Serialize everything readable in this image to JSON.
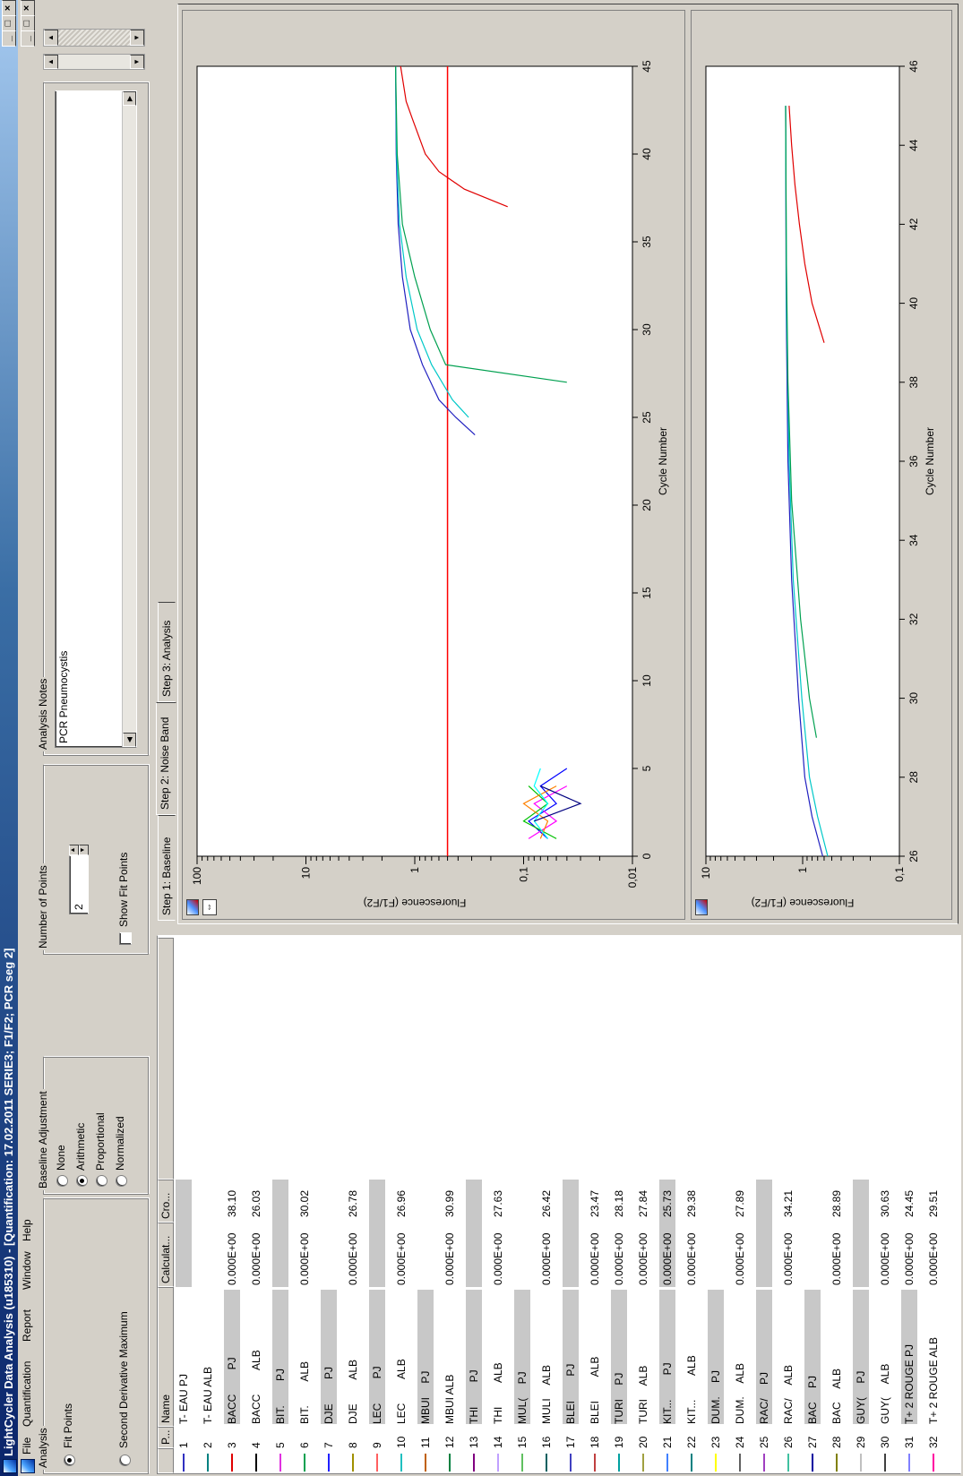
{
  "window": {
    "title": "LightCycler Data Analysis (u185310)  - [Quantification: 17.02.2011 SERIE3; F1/F2; PCR seg 2]",
    "controls": [
      "_",
      "□",
      "×"
    ]
  },
  "menu": [
    "File",
    "Quantification",
    "Report",
    "Window",
    "Help"
  ],
  "analysis": {
    "label": "Analysis",
    "options": [
      {
        "label": "Fit Points",
        "selected": true
      },
      {
        "label": "Second Derivative Maximum",
        "selected": false
      }
    ]
  },
  "baseline_adjustment": {
    "label": "Baseline Adjustment",
    "options": [
      {
        "label": "None",
        "selected": false
      },
      {
        "label": "Arithmetic",
        "selected": true
      },
      {
        "label": "Proportional",
        "selected": false
      },
      {
        "label": "Normalized",
        "selected": false
      }
    ]
  },
  "number_of_points": {
    "label": "Number of Points",
    "value": "2",
    "show_fit_points_label": "Show Fit Points",
    "show_fit_points_checked": false
  },
  "analysis_notes": {
    "label": "Analysis Notes",
    "text": "PCR Pneumocystis"
  },
  "table": {
    "columns": [
      "P...",
      "Name",
      "Calculat...",
      "Cro..."
    ],
    "rows": [
      {
        "pos": "1",
        "name": "T- EAU PJ",
        "calc": "",
        "cp": "",
        "color": "#3030c0"
      },
      {
        "pos": "2",
        "name": "T- EAU ALB",
        "calc": "",
        "cp": "",
        "color": "#008080"
      },
      {
        "pos": "3",
        "name": "BACC   PJ",
        "calc": "0.000E+00",
        "cp": "38.10",
        "color": "#e00000"
      },
      {
        "pos": "4",
        "name": "BACC   ALB",
        "calc": "0.000E+00",
        "cp": "26.03",
        "color": "#000000"
      },
      {
        "pos": "5",
        "name": "BIT.   PJ",
        "calc": "",
        "cp": "",
        "color": "#e030e0"
      },
      {
        "pos": "6",
        "name": "BIT.   ALB",
        "calc": "0.000E+00",
        "cp": "30.02",
        "color": "#00a050"
      },
      {
        "pos": "7",
        "name": "DJE   PJ",
        "calc": "",
        "cp": "",
        "color": "#2020ff"
      },
      {
        "pos": "8",
        "name": "DJE   ALB",
        "calc": "0.000E+00",
        "cp": "26.78",
        "color": "#a09000"
      },
      {
        "pos": "9",
        "name": "LEC   PJ",
        "calc": "",
        "cp": "",
        "color": "#ff6060"
      },
      {
        "pos": "10",
        "name": "LEC   ALB",
        "calc": "0.000E+00",
        "cp": "26.96",
        "color": "#20c0c0"
      },
      {
        "pos": "11",
        "name": "MBUI  PJ",
        "calc": "",
        "cp": "",
        "color": "#c06000"
      },
      {
        "pos": "12",
        "name": "MBUI ALB",
        "calc": "0.000E+00",
        "cp": "30.99",
        "color": "#008040"
      },
      {
        "pos": "13",
        "name": "THI   PJ",
        "calc": "",
        "cp": "",
        "color": "#800080"
      },
      {
        "pos": "14",
        "name": "THI   ALB",
        "calc": "0.000E+00",
        "cp": "27.63",
        "color": "#c0a0ff"
      },
      {
        "pos": "15",
        "name": "MUL(  PJ",
        "calc": "",
        "cp": "",
        "color": "#60c060"
      },
      {
        "pos": "16",
        "name": "MULI  ALB",
        "calc": "0.000E+00",
        "cp": "26.42",
        "color": "#006060"
      },
      {
        "pos": "17",
        "name": "BLEI   PJ",
        "calc": "",
        "cp": "",
        "color": "#4040c0"
      },
      {
        "pos": "18",
        "name": "BLEI   ALB",
        "calc": "0.000E+00",
        "cp": "23.47",
        "color": "#c04040"
      },
      {
        "pos": "19",
        "name": "TURI  PJ",
        "calc": "0.000E+00",
        "cp": "28.18",
        "color": "#00a0a0"
      },
      {
        "pos": "20",
        "name": "TURI  ALB",
        "calc": "0.000E+00",
        "cp": "27.84",
        "color": "#a0a040"
      },
      {
        "pos": "21",
        "name": "KIT...   PJ",
        "calc": "0.000E+00",
        "cp": "25.73",
        "color": "#4080ff"
      },
      {
        "pos": "22",
        "name": "KIT...   ALB",
        "calc": "0.000E+00",
        "cp": "29.38",
        "color": "#008080"
      },
      {
        "pos": "23",
        "name": "DUM.  PJ",
        "calc": "",
        "cp": "",
        "color": "#ffff00"
      },
      {
        "pos": "24",
        "name": "DUM.  ALB",
        "calc": "0.000E+00",
        "cp": "27.89",
        "color": "#606060"
      },
      {
        "pos": "25",
        "name": "RAC/  PJ",
        "calc": "",
        "cp": "",
        "color": "#a040c0"
      },
      {
        "pos": "26",
        "name": "RAC/  ALB",
        "calc": "0.000E+00",
        "cp": "34.21",
        "color": "#40c0a0"
      },
      {
        "pos": "27",
        "name": "BAC  PJ",
        "calc": "",
        "cp": "",
        "color": "#0000a0"
      },
      {
        "pos": "28",
        "name": "BAC  ALB",
        "calc": "0.000E+00",
        "cp": "28.89",
        "color": "#808000"
      },
      {
        "pos": "29",
        "name": "GUY(  PJ",
        "calc": "",
        "cp": "",
        "color": "#c0c0c0"
      },
      {
        "pos": "30",
        "name": "GUY(  ALB",
        "calc": "0.000E+00",
        "cp": "30.63",
        "color": "#404040"
      },
      {
        "pos": "31",
        "name": "T+ 2 ROUGE PJ",
        "calc": "0.000E+00",
        "cp": "24.45",
        "color": "#8080ff"
      },
      {
        "pos": "32",
        "name": "T+ 2 ROUGE ALB",
        "calc": "0.000E+00",
        "cp": "29.51",
        "color": "#ff00a0"
      }
    ]
  },
  "tabs": [
    "Step 1: Baseline",
    "Step 2: Noise Band",
    "Step 3: Analysis"
  ],
  "active_tab": 1,
  "chart_data": [
    {
      "type": "line",
      "ylabel": "Fluorescence (F1/F2)",
      "xlabel": "Cycle Number",
      "xlim": [
        0,
        45
      ],
      "ylim": [
        0.01,
        100
      ],
      "ylog": true,
      "xticks": [
        0,
        5,
        10,
        15,
        20,
        25,
        30,
        35,
        40,
        45
      ],
      "yticks": [
        0.01,
        0.1,
        1,
        10,
        100
      ],
      "ytick_labels": [
        "0,01",
        "0,1",
        "1",
        "10",
        "100"
      ],
      "noise_band": 0.5,
      "noise_band_color": "#ff0000",
      "series": [
        {
          "color": "#2020c0",
          "x": [
            24,
            25,
            26,
            28,
            30,
            33,
            36,
            40,
            45
          ],
          "y": [
            0.28,
            0.42,
            0.6,
            0.85,
            1.1,
            1.3,
            1.42,
            1.48,
            1.5
          ]
        },
        {
          "color": "#00c8c8",
          "x": [
            25,
            26,
            28,
            30,
            33,
            36,
            40,
            45
          ],
          "y": [
            0.32,
            0.45,
            0.7,
            0.95,
            1.2,
            1.38,
            1.47,
            1.5
          ]
        },
        {
          "color": "#00a050",
          "x": [
            27,
            28,
            30,
            33,
            36,
            40,
            45
          ],
          "y": [
            0.04,
            0.52,
            0.72,
            1.0,
            1.3,
            1.45,
            1.5
          ]
        },
        {
          "color": "#e00000",
          "x": [
            37,
            38,
            39,
            40,
            42,
            43,
            45
          ],
          "y": [
            0.14,
            0.35,
            0.6,
            0.8,
            1.05,
            1.2,
            1.35
          ]
        },
        {
          "color": "#0000ff",
          "x": [
            1,
            2,
            3,
            4,
            5
          ],
          "y": [
            0.06,
            0.09,
            0.05,
            0.07,
            0.04
          ]
        },
        {
          "color": "#ff00ff",
          "x": [
            1,
            2,
            3,
            4
          ],
          "y": [
            0.09,
            0.05,
            0.08,
            0.04
          ]
        },
        {
          "color": "#00c000",
          "x": [
            1,
            2,
            3,
            4
          ],
          "y": [
            0.05,
            0.1,
            0.06,
            0.09
          ]
        },
        {
          "color": "#ff8000",
          "x": [
            1,
            2,
            3,
            4
          ],
          "y": [
            0.07,
            0.06,
            0.1,
            0.05
          ]
        },
        {
          "color": "#00ffff",
          "x": [
            1,
            2,
            3,
            4,
            5
          ],
          "y": [
            0.06,
            0.08,
            0.06,
            0.08,
            0.07
          ]
        },
        {
          "color": "#000080",
          "x": [
            2,
            3,
            4
          ],
          "y": [
            0.08,
            0.03,
            0.07
          ]
        }
      ]
    },
    {
      "type": "line",
      "ylabel": "Fluorescence (F1/F2)",
      "xlabel": "Cycle Number",
      "xlim": [
        26,
        46
      ],
      "ylim": [
        0.1,
        10
      ],
      "ylog": true,
      "xticks": [
        26,
        28,
        30,
        32,
        34,
        36,
        38,
        40,
        42,
        44,
        46
      ],
      "yticks": [
        0.1,
        1,
        10
      ],
      "ytick_labels": [
        "0,1",
        "1",
        "10"
      ],
      "series": [
        {
          "color": "#2020c0",
          "x": [
            26,
            27,
            28,
            30,
            33,
            36,
            40,
            45
          ],
          "y": [
            0.62,
            0.8,
            0.95,
            1.1,
            1.3,
            1.42,
            1.48,
            1.5
          ]
        },
        {
          "color": "#00c8c8",
          "x": [
            26,
            27,
            28,
            30,
            33,
            36,
            40,
            45
          ],
          "y": [
            0.55,
            0.7,
            0.85,
            1.02,
            1.25,
            1.38,
            1.47,
            1.5
          ]
        },
        {
          "color": "#00a050",
          "x": [
            29,
            30,
            32,
            35,
            38,
            41,
            45
          ],
          "y": [
            0.72,
            0.85,
            1.05,
            1.3,
            1.42,
            1.47,
            1.5
          ]
        },
        {
          "color": "#e00000",
          "x": [
            39,
            40,
            41,
            42,
            43,
            44,
            45
          ],
          "y": [
            0.6,
            0.8,
            0.95,
            1.08,
            1.2,
            1.3,
            1.38
          ]
        }
      ]
    }
  ]
}
